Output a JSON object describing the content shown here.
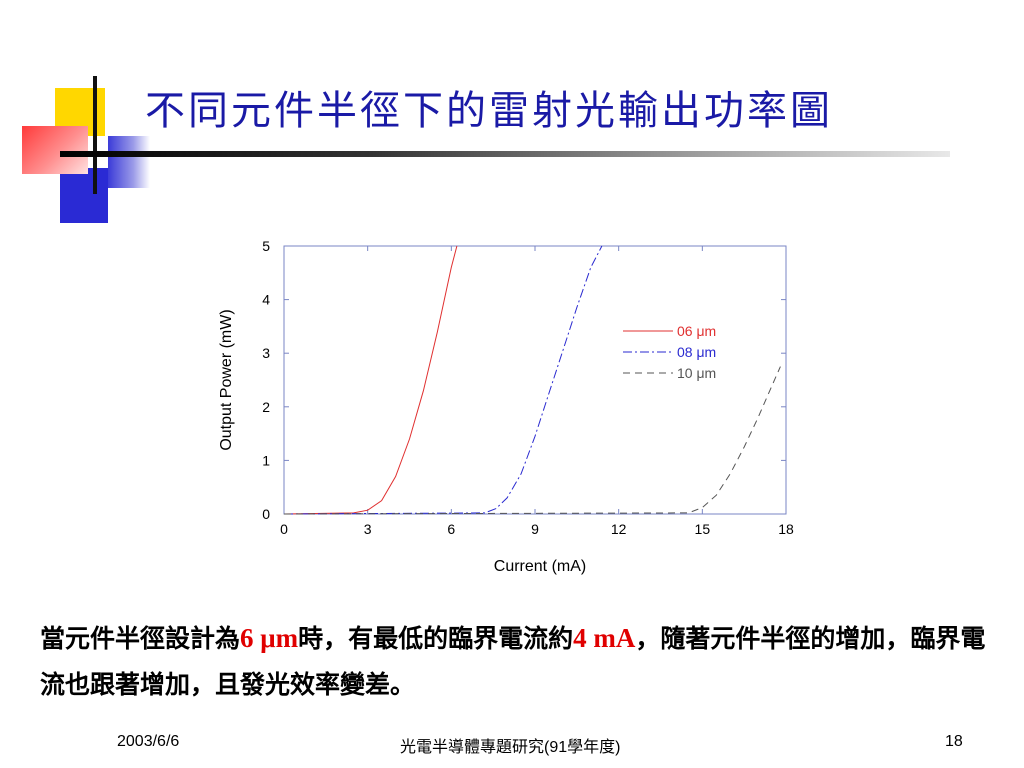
{
  "title": "不同元件半徑下的雷射光輸出功率圖",
  "caption": {
    "part1": "當元件半徑設計為",
    "hl1": "6 μm",
    "part2": "時，有最低的臨界電流約",
    "hl2": "4 mA",
    "part3": "，隨著元件半徑的增加，臨界電流也跟著增加，且發光效率變差。"
  },
  "footer": {
    "date": "2003/6/6",
    "course": "光電半導體專題研究(91學年度)",
    "page": "18"
  },
  "colors": {
    "title": "#1a1aa6",
    "highlight": "#e00000"
  },
  "chart_data": {
    "type": "line",
    "title": "",
    "xlabel": "Current (mA)",
    "ylabel": "Output Power (mW)",
    "xlim": [
      0,
      18
    ],
    "ylim": [
      0,
      5
    ],
    "xticks": [
      0,
      3,
      6,
      9,
      12,
      15,
      18
    ],
    "yticks": [
      0,
      1,
      2,
      3,
      4,
      5
    ],
    "grid": false,
    "legend_position": "right",
    "series": [
      {
        "name": "06 μm",
        "color": "#e03030",
        "dash": "solid",
        "x": [
          0,
          2.5,
          3.0,
          3.5,
          4.0,
          4.5,
          5.0,
          5.5,
          6.0,
          6.2
        ],
        "y": [
          0,
          0.02,
          0.07,
          0.25,
          0.7,
          1.4,
          2.3,
          3.4,
          4.6,
          5.0
        ]
      },
      {
        "name": "08 μm",
        "color": "#2a2ad0",
        "dash": "dashdot",
        "x": [
          0,
          7.2,
          7.6,
          8.0,
          8.5,
          9.0,
          9.5,
          10.0,
          10.5,
          11.0,
          11.4
        ],
        "y": [
          0,
          0.02,
          0.1,
          0.3,
          0.75,
          1.45,
          2.25,
          3.05,
          3.85,
          4.6,
          5.0
        ]
      },
      {
        "name": "10 μm",
        "color": "#555555",
        "dash": "dashed",
        "x": [
          0,
          14.5,
          15.0,
          15.5,
          16.0,
          16.5,
          17.0,
          17.5,
          17.8
        ],
        "y": [
          0,
          0.02,
          0.12,
          0.35,
          0.75,
          1.25,
          1.8,
          2.4,
          2.75
        ]
      }
    ]
  }
}
